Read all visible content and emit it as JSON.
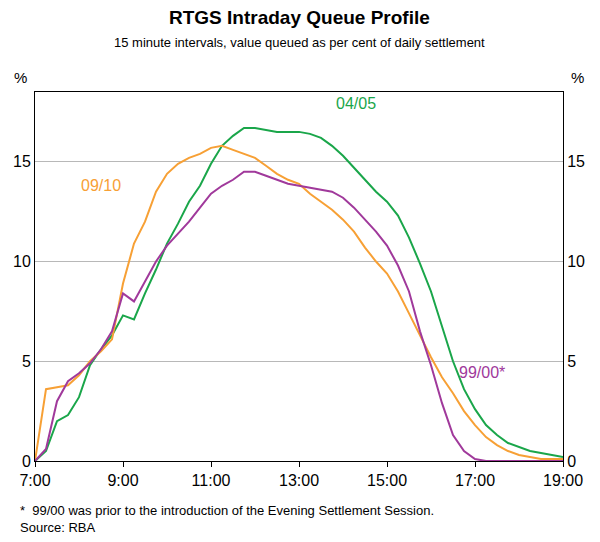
{
  "chart_data": {
    "type": "line",
    "title": "RTGS Intraday Queue Profile",
    "subtitle": "15 minute intervals, value queued as per cent of daily settlement",
    "y_label": "%",
    "notes": [
      "*  99/00 was prior to the introduction of the Evening Settlement Session.",
      "Source: RBA"
    ],
    "x": [
      7,
      7.25,
      7.5,
      7.75,
      8,
      8.25,
      8.5,
      8.75,
      9,
      9.25,
      9.5,
      9.75,
      10,
      10.25,
      10.5,
      10.75,
      11,
      11.25,
      11.5,
      11.75,
      12,
      12.25,
      12.5,
      12.75,
      13,
      13.25,
      13.5,
      13.75,
      14,
      14.25,
      14.5,
      14.75,
      15,
      15.25,
      15.5,
      15.75,
      16,
      16.25,
      16.5,
      16.75,
      17,
      17.25,
      17.5,
      17.75,
      18,
      18.25,
      18.5,
      18.75,
      19
    ],
    "series": [
      {
        "name": "04/05",
        "color": "#1aa64a",
        "values": [
          0,
          0.5,
          2.0,
          2.3,
          3.2,
          4.8,
          5.6,
          6.3,
          7.3,
          7.1,
          8.4,
          9.6,
          10.9,
          11.9,
          13.0,
          13.8,
          14.9,
          15.8,
          16.3,
          16.7,
          16.7,
          16.6,
          16.5,
          16.5,
          16.5,
          16.4,
          16.2,
          15.8,
          15.3,
          14.7,
          14.1,
          13.5,
          13.0,
          12.3,
          11.2,
          9.9,
          8.5,
          6.8,
          5.0,
          3.6,
          2.6,
          1.8,
          1.3,
          0.9,
          0.7,
          0.5,
          0.4,
          0.3,
          0.2
        ]
      },
      {
        "name": "09/10",
        "color": "#f7a035",
        "values": [
          0,
          3.6,
          3.7,
          3.8,
          4.3,
          5.0,
          5.5,
          6.1,
          8.9,
          10.9,
          12.0,
          13.5,
          14.4,
          14.9,
          15.2,
          15.4,
          15.7,
          15.8,
          15.6,
          15.4,
          15.2,
          14.8,
          14.4,
          14.1,
          13.9,
          13.4,
          13.0,
          12.6,
          12.1,
          11.5,
          10.7,
          10.0,
          9.4,
          8.5,
          7.4,
          6.3,
          5.2,
          4.2,
          3.4,
          2.5,
          1.8,
          1.2,
          0.8,
          0.5,
          0.3,
          0.2,
          0.1,
          0.1,
          0.1
        ]
      },
      {
        "name": "99/00*",
        "color": "#a0399b",
        "values": [
          0,
          0.6,
          3.0,
          4.0,
          4.4,
          4.9,
          5.6,
          6.5,
          8.4,
          8.0,
          9.0,
          10.0,
          10.8,
          11.4,
          12.0,
          12.7,
          13.4,
          13.8,
          14.1,
          14.5,
          14.5,
          14.3,
          14.1,
          13.9,
          13.8,
          13.7,
          13.6,
          13.5,
          13.2,
          12.7,
          12.1,
          11.5,
          10.8,
          9.8,
          8.5,
          6.5,
          4.8,
          2.9,
          1.3,
          0.5,
          0.1,
          0,
          0,
          0,
          0,
          0,
          0,
          0,
          0
        ]
      }
    ],
    "xlim": [
      7,
      19
    ],
    "xticks": [
      {
        "value": 7,
        "label": "7:00"
      },
      {
        "value": 9,
        "label": "9:00"
      },
      {
        "value": 11,
        "label": "11:00"
      },
      {
        "value": 13,
        "label": "13:00"
      },
      {
        "value": 15,
        "label": "15:00"
      },
      {
        "value": 17,
        "label": "17:00"
      },
      {
        "value": 19,
        "label": "19:00"
      }
    ],
    "ylim": [
      0,
      18.5
    ],
    "yticks": [
      0,
      5,
      10,
      15
    ],
    "y2lim": [
      0,
      18.5
    ],
    "y2ticks": [
      0,
      5,
      10,
      15
    ],
    "grid": true
  }
}
